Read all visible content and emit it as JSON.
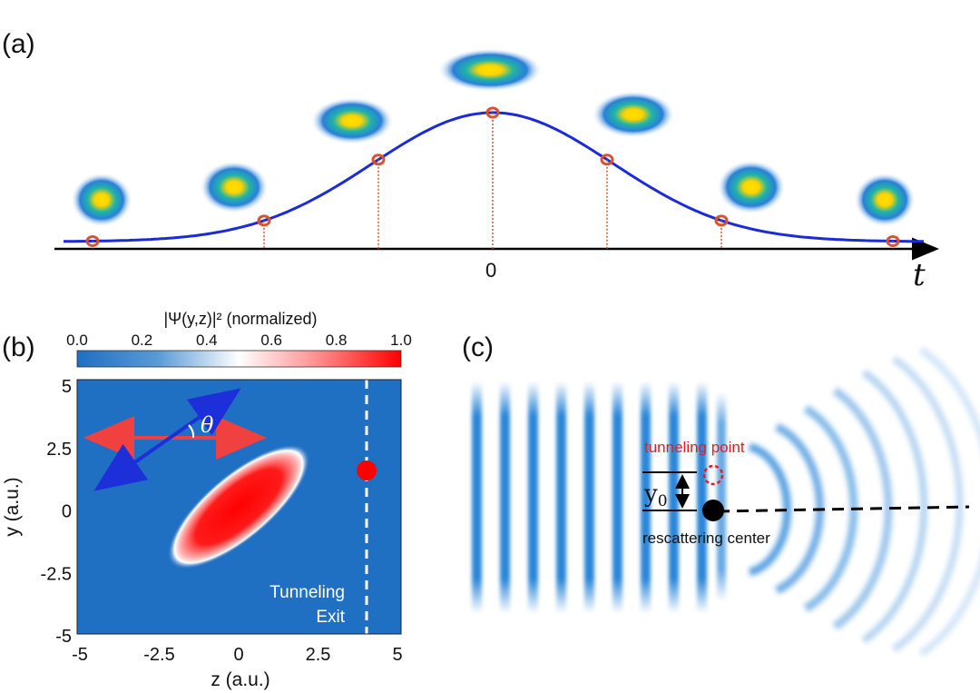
{
  "panel_a": {
    "label": "(a)",
    "axis_label": "t",
    "tick_zero": "0",
    "sample_times": [
      -3.5,
      -2,
      -1,
      0,
      1,
      2,
      3.5
    ],
    "gaussian": {
      "center": 0,
      "sigma": 1.05
    }
  },
  "panel_b": {
    "label": "(b)",
    "colorbar": {
      "title": "|Ψ(y,z)|² (normalized)",
      "ticks": [
        "0.0",
        "0.2",
        "0.4",
        "0.6",
        "0.8",
        "1.0"
      ],
      "colors": [
        "#1f6fc2",
        "#ffffff",
        "#ff0000"
      ]
    },
    "x_axis": {
      "label": "z (a.u.)",
      "ticks": [
        "-5",
        "-2.5",
        "0",
        "2.5",
        "5"
      ],
      "range": [
        -5,
        5
      ]
    },
    "y_axis": {
      "label": "y (a.u.)",
      "ticks": [
        "5",
        "2.5",
        "0",
        "-2.5",
        "-5"
      ],
      "range": [
        -5,
        5
      ]
    },
    "angle_symbol": "θ",
    "exit_label_line1": "Tunneling",
    "exit_label_line2": "Exit",
    "exit_z": 4,
    "exit_point_y": 1.4
  },
  "panel_c": {
    "label": "(c)",
    "tunneling_point_label": "tunneling point",
    "rescattering_center_label": "rescattering center",
    "offset_label": "y",
    "offset_subscript": "0"
  },
  "colors": {
    "curve": "#1b2bd6",
    "marker": "#d9532c",
    "map_blue": "#1f6fc2",
    "red": "#ff0000",
    "arrow_blue": "#1d2fd9",
    "arrow_red": "#f04040"
  }
}
